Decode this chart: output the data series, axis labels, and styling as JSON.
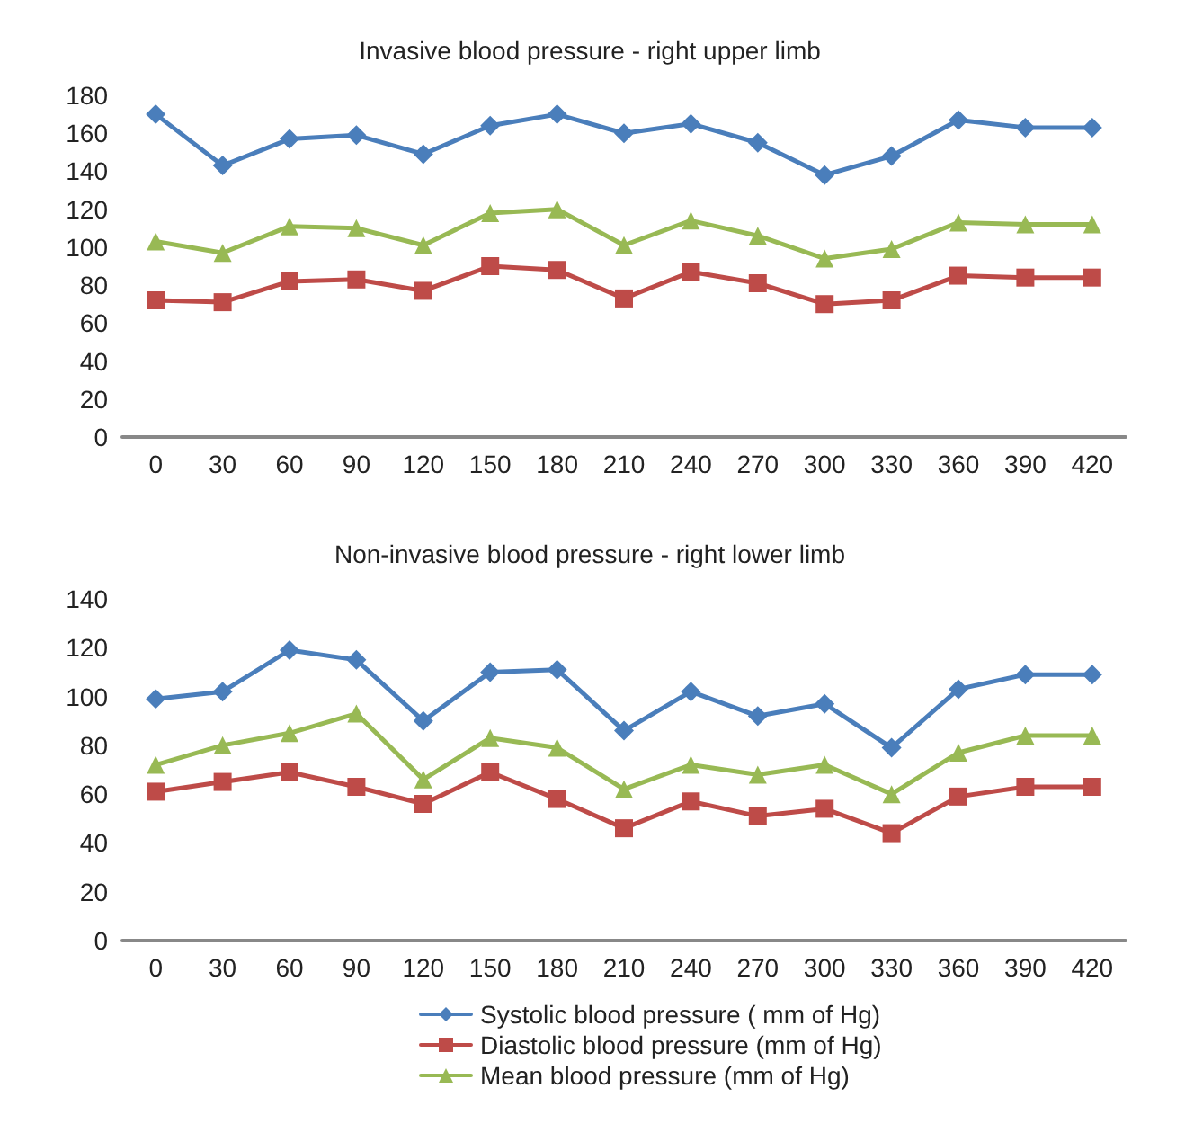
{
  "chart_data": [
    {
      "type": "line",
      "title": "Invasive blood pressure - right upper limb",
      "categories": [
        "0",
        "30",
        "60",
        "90",
        "120",
        "150",
        "180",
        "210",
        "240",
        "270",
        "300",
        "330",
        "360",
        "390",
        "420"
      ],
      "ylim": [
        0,
        180
      ],
      "yticks": [
        0,
        20,
        40,
        60,
        80,
        100,
        120,
        140,
        160,
        180
      ],
      "grid": false,
      "series": [
        {
          "color": "#4a7ebb",
          "marker": "diamond",
          "values": [
            170,
            143,
            157,
            159,
            149,
            164,
            170,
            160,
            165,
            155,
            138,
            148,
            167,
            163,
            163
          ]
        },
        {
          "color": "#be4b48",
          "marker": "square",
          "values": [
            72,
            71,
            82,
            83,
            77,
            90,
            88,
            73,
            87,
            81,
            70,
            72,
            85,
            84,
            84
          ]
        },
        {
          "color": "#98b954",
          "marker": "triangle",
          "values": [
            103,
            97,
            111,
            110,
            101,
            118,
            120,
            101,
            114,
            106,
            94,
            99,
            113,
            112,
            112
          ]
        }
      ]
    },
    {
      "type": "line",
      "title": "Non-invasive blood pressure - right lower limb",
      "categories": [
        "0",
        "30",
        "60",
        "90",
        "120",
        "150",
        "180",
        "210",
        "240",
        "270",
        "300",
        "330",
        "360",
        "390",
        "420"
      ],
      "ylim": [
        0,
        140
      ],
      "yticks": [
        0,
        20,
        40,
        60,
        80,
        100,
        120,
        140
      ],
      "grid": false,
      "legend": "bottom",
      "series": [
        {
          "name": "Systolic blood pressure ( mm of Hg)",
          "color": "#4a7ebb",
          "marker": "diamond",
          "values": [
            99,
            102,
            119,
            115,
            90,
            110,
            111,
            86,
            102,
            92,
            97,
            79,
            103,
            109,
            109
          ]
        },
        {
          "name": "Diastolic blood pressure (mm of Hg)",
          "color": "#be4b48",
          "marker": "square",
          "values": [
            61,
            65,
            69,
            63,
            56,
            69,
            58,
            46,
            57,
            51,
            54,
            44,
            59,
            63,
            63
          ]
        },
        {
          "name": "Mean blood pressure (mm of Hg)",
          "color": "#98b954",
          "marker": "triangle",
          "values": [
            72,
            80,
            85,
            93,
            66,
            83,
            79,
            62,
            72,
            68,
            72,
            60,
            77,
            84,
            84
          ]
        }
      ]
    }
  ]
}
